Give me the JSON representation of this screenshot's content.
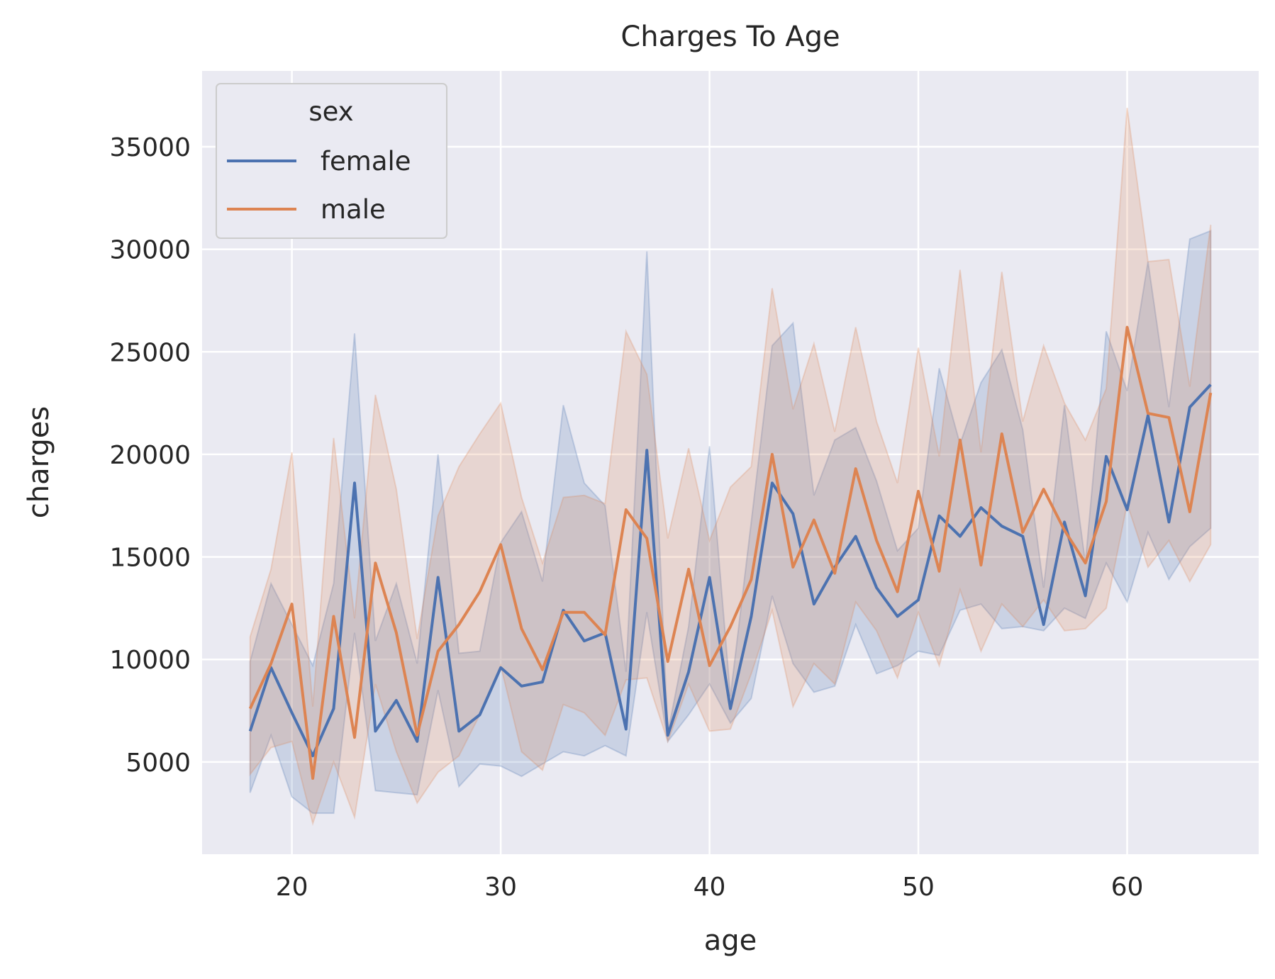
{
  "chart_data": {
    "type": "line",
    "title": "Charges To Age",
    "xlabel": "age",
    "ylabel": "charges",
    "xlim": [
      15.7,
      66.3
    ],
    "ylim": [
      500,
      38700
    ],
    "xticks": [
      20,
      30,
      40,
      50,
      60
    ],
    "yticks": [
      5000,
      10000,
      15000,
      20000,
      25000,
      30000,
      35000
    ],
    "grid": true,
    "background": "#eaeaf2",
    "legend": {
      "title": "sex",
      "position": "top-left"
    },
    "x": [
      18,
      19,
      20,
      21,
      22,
      23,
      24,
      25,
      26,
      27,
      28,
      29,
      30,
      31,
      32,
      33,
      34,
      35,
      36,
      37,
      38,
      39,
      40,
      41,
      42,
      43,
      44,
      45,
      46,
      47,
      48,
      49,
      50,
      51,
      52,
      53,
      54,
      55,
      56,
      57,
      58,
      59,
      60,
      61,
      62,
      63,
      64
    ],
    "series": [
      {
        "name": "female",
        "color": "#4c72b0",
        "values": [
          6500,
          9600,
          7400,
          5300,
          7600,
          18600,
          6500,
          8000,
          6000,
          14000,
          6500,
          7300,
          9600,
          8700,
          8900,
          12400,
          10900,
          11300,
          6600,
          20200,
          6300,
          9400,
          14000,
          7600,
          12100,
          18600,
          17100,
          12700,
          14500,
          16000,
          13500,
          12100,
          12900,
          17000,
          16000,
          17400,
          16500,
          16000,
          11700,
          16700,
          13100,
          19900,
          17300,
          21900,
          16700,
          22300,
          23400
        ],
        "ci_low": [
          3500,
          6300,
          3300,
          2500,
          2500,
          11300,
          3600,
          3500,
          3400,
          8500,
          3800,
          4900,
          4800,
          4300,
          4900,
          5500,
          5300,
          5800,
          5300,
          12300,
          6000,
          7300,
          8800,
          6900,
          8100,
          13100,
          9800,
          8400,
          8700,
          11700,
          9300,
          9700,
          10400,
          10200,
          12400,
          12700,
          11500,
          11600,
          11400,
          12500,
          12000,
          14700,
          12800,
          16200,
          13900,
          15500,
          16400
        ],
        "ci_high": [
          9900,
          13700,
          11700,
          9700,
          13700,
          25900,
          10900,
          13700,
          9800,
          20000,
          10300,
          10400,
          15700,
          17200,
          13800,
          22400,
          18600,
          17500,
          9400,
          29900,
          6400,
          11600,
          20400,
          8200,
          16700,
          25300,
          26400,
          18000,
          20700,
          21300,
          18700,
          15300,
          16400,
          24200,
          20500,
          23500,
          25100,
          21200,
          13500,
          22400,
          14700,
          26000,
          23100,
          29400,
          22300,
          30500,
          30900
        ],
        "ci_color": "#a9b9d8"
      },
      {
        "name": "male",
        "color": "#dd8452",
        "values": [
          7600,
          9800,
          12700,
          4200,
          12100,
          6200,
          14700,
          11300,
          6300,
          10400,
          11700,
          13300,
          15600,
          11500,
          9500,
          12300,
          12300,
          11200,
          17300,
          15900,
          9900,
          14400,
          9700,
          11600,
          13900,
          20000,
          14500,
          16800,
          14200,
          19300,
          15800,
          13300,
          18200,
          14300,
          20700,
          14600,
          21000,
          16200,
          18300,
          16300,
          14700,
          17700,
          26200,
          22000,
          21800,
          17200,
          23000
        ],
        "ci_low": [
          4400,
          5700,
          6000,
          2000,
          5000,
          2300,
          8800,
          5500,
          3000,
          4500,
          5300,
          7300,
          9700,
          5500,
          4600,
          7800,
          7400,
          6300,
          9000,
          9100,
          6000,
          8800,
          6500,
          6600,
          9300,
          12400,
          7700,
          9800,
          8800,
          12800,
          11400,
          9100,
          12300,
          9700,
          13400,
          10400,
          12700,
          11600,
          12900,
          11400,
          11500,
          12500,
          17600,
          14500,
          15800,
          13800,
          15600
        ],
        "ci_high": [
          11100,
          14400,
          20100,
          7700,
          20800,
          12000,
          22900,
          18300,
          11000,
          17000,
          19400,
          21000,
          22500,
          17900,
          14700,
          17900,
          18000,
          17600,
          26000,
          23900,
          15900,
          20300,
          15800,
          18400,
          19400,
          28100,
          22200,
          25400,
          21100,
          26200,
          21600,
          18600,
          25200,
          19900,
          29000,
          20100,
          28900,
          21600,
          25300,
          22500,
          20700,
          23200,
          36900,
          29400,
          29500,
          23300,
          31200
        ],
        "ci_color": "#ecbfa5"
      }
    ]
  }
}
